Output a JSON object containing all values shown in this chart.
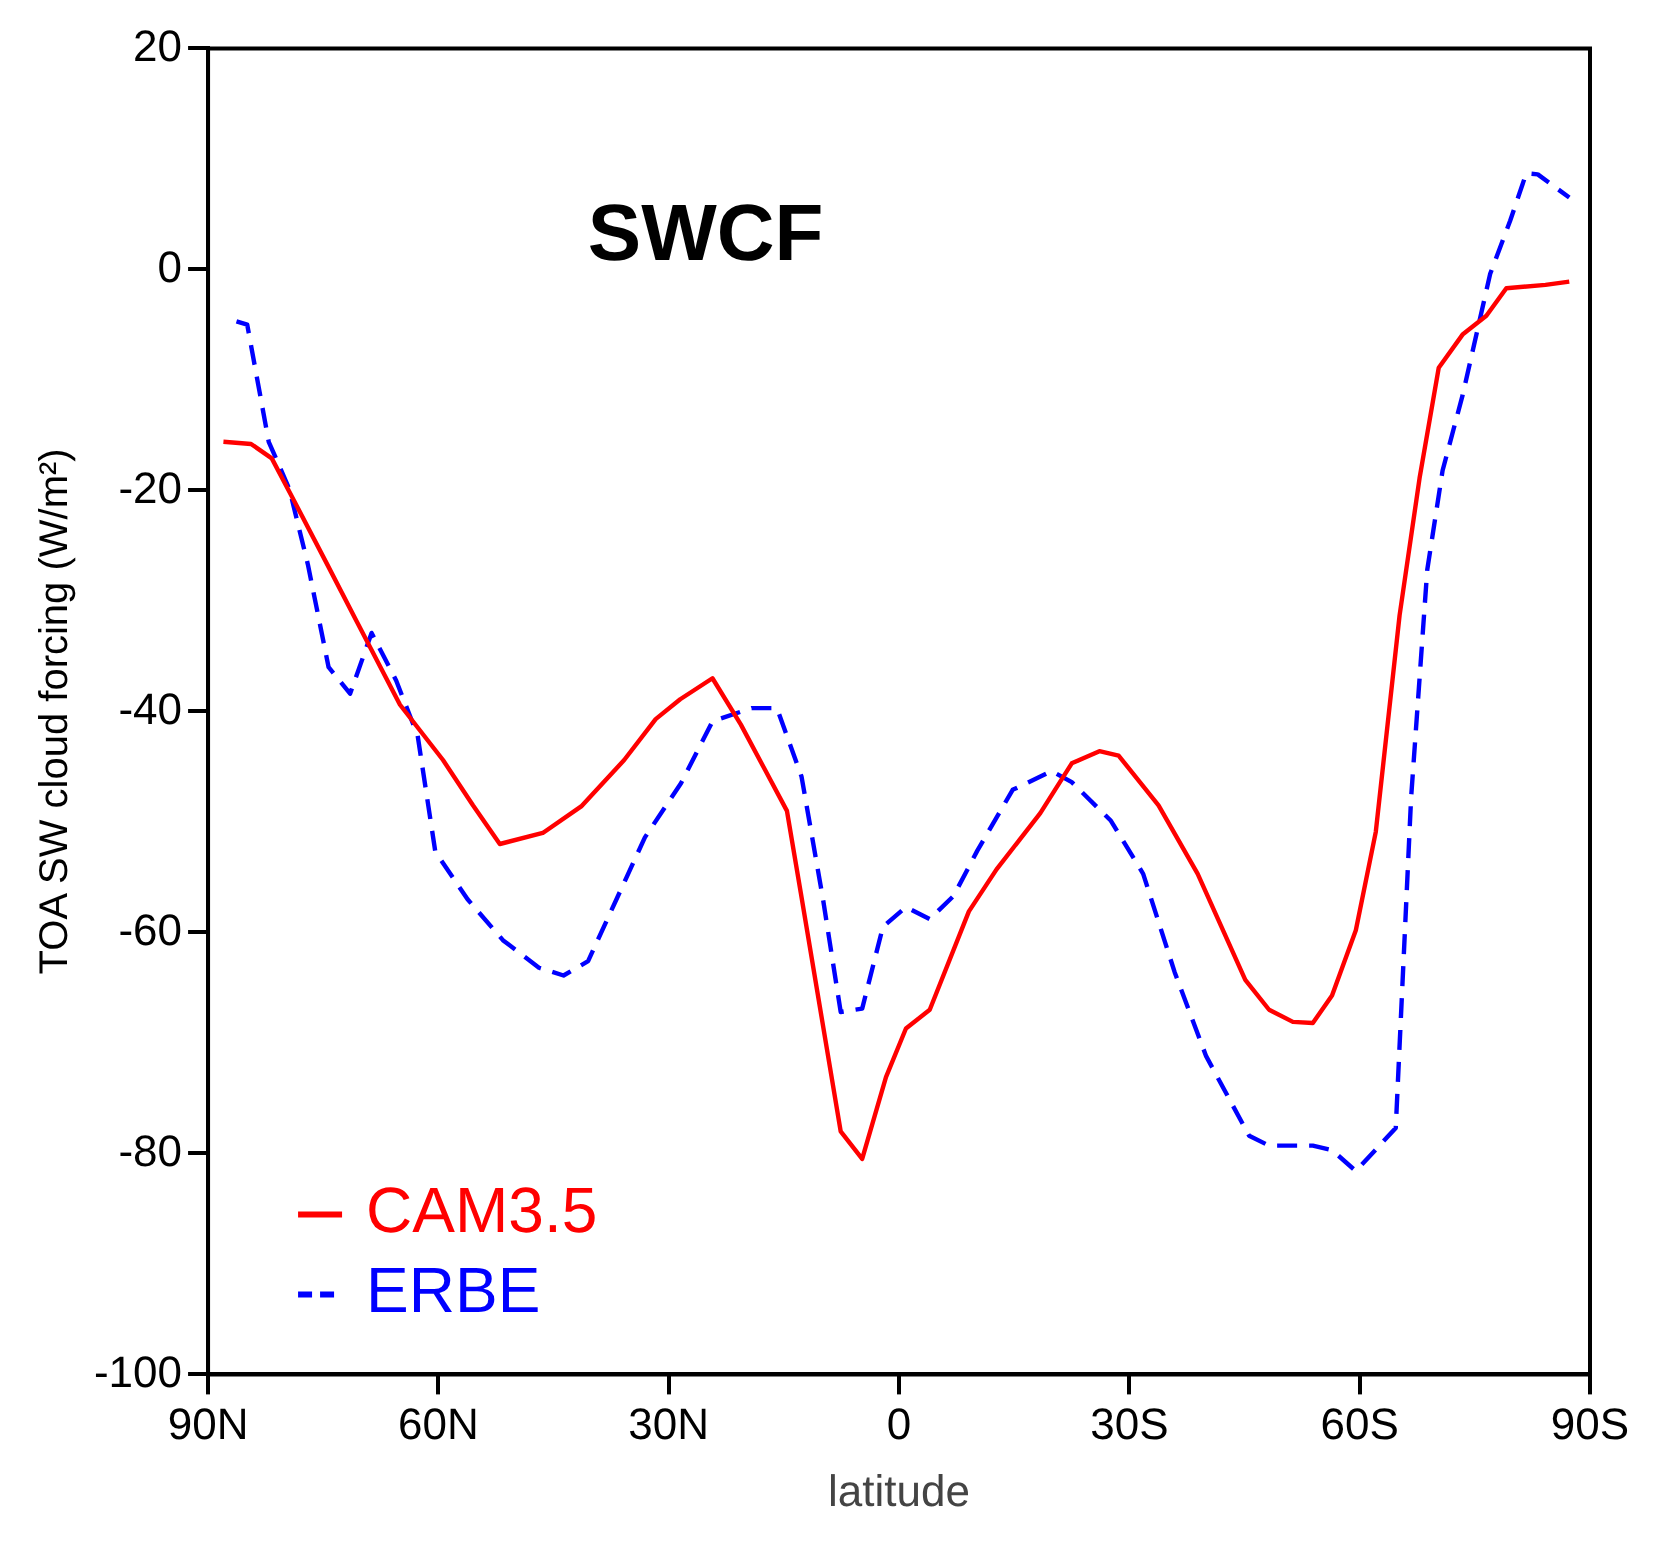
{
  "chart_data": {
    "type": "line",
    "title": "SWCF",
    "xlabel": "latitude",
    "ylabel": "TOA SW cloud forcing (W/m²)",
    "xlim": [
      90,
      -90
    ],
    "xticks": [
      {
        "value": 90,
        "label": "90N"
      },
      {
        "value": 60,
        "label": "60N"
      },
      {
        "value": 30,
        "label": "30N"
      },
      0,
      {
        "value": -30,
        "label": "30S"
      },
      {
        "value": -60,
        "label": "60S"
      },
      {
        "value": -90,
        "label": "90S"
      }
    ],
    "ylim": [
      -100,
      20
    ],
    "yticks": [
      -100,
      -80,
      -60,
      -40,
      -20,
      0,
      20
    ],
    "grid": false,
    "legend": "bottom left",
    "series": [
      {
        "name": "CAM3.5",
        "color": "#ff0000",
        "line_style": "solid",
        "x": [
          88,
          84.4,
          81.7,
          78.9,
          74.7,
          70.6,
          65,
          59.4,
          55.5,
          52,
          46.4,
          41.4,
          35.8,
          31.7,
          28.5,
          24.3,
          20.6,
          14.6,
          12.8,
          7.6,
          4.8,
          1.7,
          -0.9,
          -4,
          -9.1,
          -12.7,
          -18.4,
          -22.5,
          -26.1,
          -28.6,
          -33.8,
          -38.9,
          -45.1,
          -48.2,
          -51.3,
          -53.9,
          -56.4,
          -59.5,
          -62.1,
          -65.2,
          -67.8,
          -70.3,
          -73.4,
          -76.5,
          -79.1,
          -84.2,
          -87.3
        ],
        "values": [
          -15.6,
          -15.8,
          -17.1,
          -20.8,
          -26.4,
          -31.9,
          -39.4,
          -44.4,
          -48.5,
          -52,
          -51,
          -48.6,
          -44.4,
          -40.7,
          -38.9,
          -37,
          -41.2,
          -49,
          -56.4,
          -78,
          -80.5,
          -73.1,
          -68.7,
          -67,
          -58.1,
          -54.3,
          -49.2,
          -44.7,
          -43.6,
          -44,
          -48.5,
          -54.7,
          -64.3,
          -67,
          -68.1,
          -68.2,
          -65.7,
          -59.8,
          -50.9,
          -31.3,
          -18.9,
          -8.9,
          -5.9,
          -4.2,
          -1.7,
          -1.4,
          -1.1
        ]
      },
      {
        "name": "ERBE",
        "color": "#0000ff",
        "line_style": "dashed",
        "x": [
          86.3,
          84.9,
          82.1,
          79.4,
          77,
          74.3,
          71.5,
          68.7,
          65.5,
          62.7,
          60.4,
          56.2,
          51.6,
          46.9,
          43.7,
          40.5,
          36.8,
          33.1,
          28.4,
          24.3,
          19.2,
          15.9,
          12.7,
          9.9,
          7.6,
          4.8,
          2.1,
          -0.9,
          -4,
          -7.1,
          -10.2,
          -14.8,
          -19.9,
          -22.5,
          -27.6,
          -31.8,
          -35.9,
          -40,
          -45.6,
          -48.2,
          -53.9,
          -56.4,
          -59.5,
          -64.7,
          -66.7,
          -68.8,
          -70.8,
          -73.4,
          -77,
          -79.6,
          -81.7,
          -83.2,
          -87.3
        ],
        "values": [
          -4.7,
          -5,
          -15.6,
          -19.9,
          -26.7,
          -36,
          -38.4,
          -32.9,
          -37.2,
          -42.2,
          -52.7,
          -57,
          -60.7,
          -63.2,
          -63.9,
          -62.6,
          -57,
          -51.4,
          -46.5,
          -40.9,
          -39.7,
          -39.7,
          -45.9,
          -57,
          -67.2,
          -66.9,
          -59.5,
          -57.7,
          -58.8,
          -56.7,
          -52.6,
          -47.1,
          -45.4,
          -46.4,
          -49.9,
          -54.7,
          -63.6,
          -71.2,
          -78.4,
          -79.3,
          -79.3,
          -79.7,
          -81.6,
          -77.7,
          -47.8,
          -27.2,
          -18.2,
          -11.4,
          -0.4,
          4.4,
          8.7,
          8.6,
          6.5
        ]
      }
    ]
  }
}
